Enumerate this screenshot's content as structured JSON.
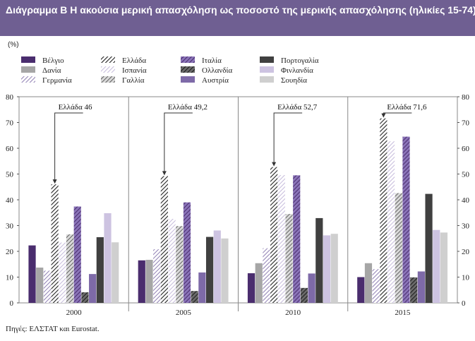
{
  "header": {
    "title": "Διάγραμμα Β  Η ακούσια μερική απασχόληση ως ποσοστό της μερικής απασχόλησης (ηλικίες 15-74)"
  },
  "source": "Πηγές: ΕΛΣΤΑΤ και Eurostat.",
  "chart_data": {
    "type": "bar",
    "ylabel": "(%)",
    "ylim": [
      0,
      80
    ],
    "yticks": [
      0,
      10,
      20,
      30,
      40,
      50,
      60,
      70,
      80
    ],
    "categories": [
      "2000",
      "2005",
      "2010",
      "2015"
    ],
    "series": [
      {
        "name": "Βέλγιο",
        "color": "#4a2d6e",
        "pattern": "solid",
        "values": [
          22.3,
          16.5,
          11.5,
          10.0
        ]
      },
      {
        "name": "Δανία",
        "color": "#a6a6a6",
        "pattern": "solid",
        "values": [
          13.7,
          16.7,
          15.4,
          15.4
        ]
      },
      {
        "name": "Γερμανία",
        "color": "#8f7fb3",
        "pattern": "hatch",
        "values": [
          12.5,
          20.8,
          21.2,
          13.1
        ]
      },
      {
        "name": "Ελλάδα",
        "color": "#333333",
        "pattern": "hatch-dark",
        "values": [
          46.0,
          49.2,
          52.7,
          71.6
        ]
      },
      {
        "name": "Ισπανία",
        "color": "#c5badb",
        "pattern": "hatch-light",
        "values": [
          23.4,
          32.6,
          49.6,
          62.7
        ]
      },
      {
        "name": "Γαλλία",
        "color": "#6b6b6b",
        "pattern": "hatch-grey",
        "values": [
          26.6,
          29.8,
          34.5,
          42.6
        ]
      },
      {
        "name": "Ιταλία",
        "color": "#5a3f8e",
        "pattern": "hatch-purple",
        "values": [
          37.4,
          39.0,
          49.5,
          64.5
        ]
      },
      {
        "name": "Ολλανδία",
        "color": "#2b2b2b",
        "pattern": "hatch-dark2",
        "values": [
          4.1,
          4.6,
          5.8,
          9.9
        ]
      },
      {
        "name": "Αυστρία",
        "color": "#7e6aa8",
        "pattern": "solid",
        "values": [
          11.2,
          11.8,
          11.4,
          12.2
        ]
      },
      {
        "name": "Πορτογαλία",
        "color": "#404040",
        "pattern": "solid",
        "values": [
          25.5,
          25.6,
          32.9,
          42.3
        ]
      },
      {
        "name": "Φινλανδία",
        "color": "#cdc3e1",
        "pattern": "solid",
        "values": [
          34.8,
          28.1,
          26.2,
          28.3
        ]
      },
      {
        "name": "Σουηδία",
        "color": "#cfcfcf",
        "pattern": "solid",
        "values": [
          23.5,
          25.0,
          26.8,
          27.3
        ]
      }
    ],
    "annotations": [
      {
        "text": "Ελλάδα 46",
        "category": "2000",
        "series": "Ελλάδα",
        "value": 46.0
      },
      {
        "text": "Ελλάδα 49,2",
        "category": "2005",
        "series": "Ελλάδα",
        "value": 49.2
      },
      {
        "text": "Ελλάδα 52,7",
        "category": "2010",
        "series": "Ελλάδα",
        "value": 52.7
      },
      {
        "text": "Ελλάδα 71,6",
        "category": "2015",
        "series": "Ελλάδα",
        "value": 71.6
      }
    ]
  }
}
